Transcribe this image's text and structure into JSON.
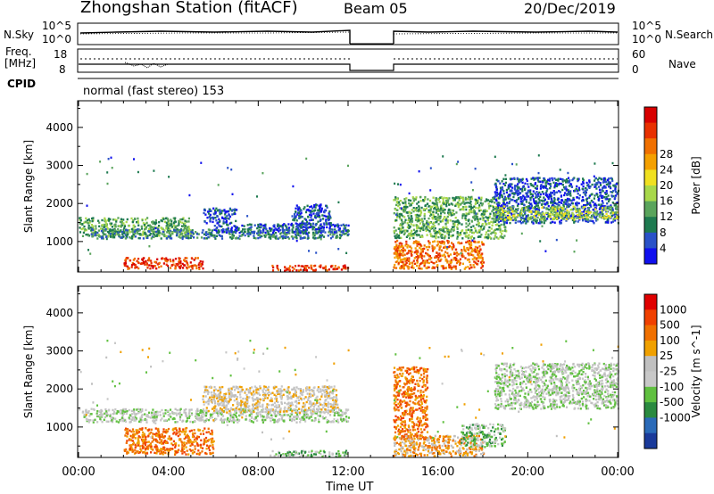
{
  "header": {
    "station": "Zhongshan Station (fitACF)",
    "beam": "Beam 05",
    "date": "20/Dec/2019",
    "mode": "normal (fast stereo) 153"
  },
  "labels": {
    "nsky": "N.Sky",
    "freq": "Freq.",
    "freq_unit": "[MHz]",
    "cpid": "CPID",
    "nsearch": "N.Search",
    "nave": "Nave",
    "nsky_top": "10^5",
    "nsky_bottom": "10^0",
    "nsearch_top": "10^5",
    "nsearch_bottom": "10^0",
    "freq_top": "18",
    "freq_bottom": "8",
    "nave_top": "60",
    "nave_bottom": "0",
    "xlabel": "Time UT"
  },
  "chart_data": [
    {
      "type": "heatmap",
      "title": "",
      "ylabel": "Slant Range [km]",
      "xlabel": "Time UT",
      "ylim": [
        200,
        4700
      ],
      "xlim": [
        0,
        24
      ],
      "yticks": [
        1000,
        2000,
        3000,
        4000
      ],
      "xticks": [
        "00:00",
        "04:00",
        "08:00",
        "12:00",
        "16:00",
        "20:00",
        "00:00"
      ],
      "data_gap_hours": [
        12.0,
        14.0
      ],
      "colorbar": {
        "label": "Power [dB]",
        "ticks": [
          "4",
          "8",
          "12",
          "16",
          "20",
          "24",
          "28"
        ],
        "colors": [
          "#1010ee",
          "#2a52c8",
          "#1e7a50",
          "#5aa45c",
          "#a8d84a",
          "#f0e020",
          "#f4a000",
          "#f07000",
          "#e83000",
          "#d80000"
        ]
      },
      "echo_bands": [
        {
          "start": 0.0,
          "end": 5.0,
          "range_low": 1150,
          "range_high": 1650,
          "level": 3
        },
        {
          "start": 0.5,
          "end": 12.0,
          "range_low": 1100,
          "range_high": 1350,
          "level": 2
        },
        {
          "start": 6.0,
          "end": 12.0,
          "range_low": 1250,
          "range_high": 1500,
          "level": 1
        },
        {
          "start": 9.5,
          "end": 11.2,
          "range_low": 1400,
          "range_high": 2000,
          "level": 1
        },
        {
          "start": 5.5,
          "end": 7.0,
          "range_low": 1500,
          "range_high": 1900,
          "level": 1
        },
        {
          "start": 2.0,
          "end": 5.5,
          "range_low": 300,
          "range_high": 600,
          "level": 8
        },
        {
          "start": 8.5,
          "end": 12.0,
          "range_low": 250,
          "range_high": 400,
          "level": 8
        },
        {
          "start": 14.0,
          "end": 18.0,
          "range_low": 300,
          "range_high": 1050,
          "level": 7
        },
        {
          "start": 14.0,
          "end": 19.0,
          "range_low": 1100,
          "range_high": 2200,
          "level": 3
        },
        {
          "start": 18.5,
          "end": 24.0,
          "range_low": 1500,
          "range_high": 2700,
          "level": 1
        },
        {
          "start": 18.5,
          "end": 24.0,
          "range_low": 1600,
          "range_high": 1950,
          "level": 4
        }
      ]
    },
    {
      "type": "heatmap",
      "title": "",
      "ylabel": "Slant Range [km]",
      "xlabel": "Time UT",
      "ylim": [
        200,
        4700
      ],
      "xlim": [
        0,
        24
      ],
      "yticks": [
        1000,
        2000,
        3000,
        4000
      ],
      "xticks": [
        "00:00",
        "04:00",
        "08:00",
        "12:00",
        "16:00",
        "20:00",
        "00:00"
      ],
      "data_gap_hours": [
        12.0,
        14.0
      ],
      "colorbar": {
        "label": "Velocity [m s^-1]",
        "ticks": [
          "1000",
          "500",
          "100",
          "25",
          "-25",
          "-100",
          "-500",
          "-1000"
        ],
        "colors": [
          "#1a3a9a",
          "#2a6ab8",
          "#2a8a40",
          "#60c040",
          "#c8c8c8",
          "#c0c0c0",
          "#f0a000",
          "#f07000",
          "#f04000",
          "#e00000"
        ]
      },
      "echo_bands": [
        {
          "start": 0.0,
          "end": 12.0,
          "range_low": 1150,
          "range_high": 1500,
          "level": 4
        },
        {
          "start": 5.5,
          "end": 11.5,
          "range_low": 1400,
          "range_high": 2100,
          "level": 5
        },
        {
          "start": 2.0,
          "end": 6.0,
          "range_low": 300,
          "range_high": 1000,
          "level": 7
        },
        {
          "start": 8.5,
          "end": 12.0,
          "range_low": 250,
          "range_high": 400,
          "level": 3
        },
        {
          "start": 14.0,
          "end": 15.5,
          "range_low": 700,
          "range_high": 2600,
          "level": 7
        },
        {
          "start": 14.0,
          "end": 18.0,
          "range_low": 250,
          "range_high": 800,
          "level": 6
        },
        {
          "start": 17.0,
          "end": 19.0,
          "range_low": 500,
          "range_high": 1100,
          "level": 3
        },
        {
          "start": 18.5,
          "end": 24.0,
          "range_low": 1500,
          "range_high": 2700,
          "level": 4
        }
      ]
    }
  ]
}
